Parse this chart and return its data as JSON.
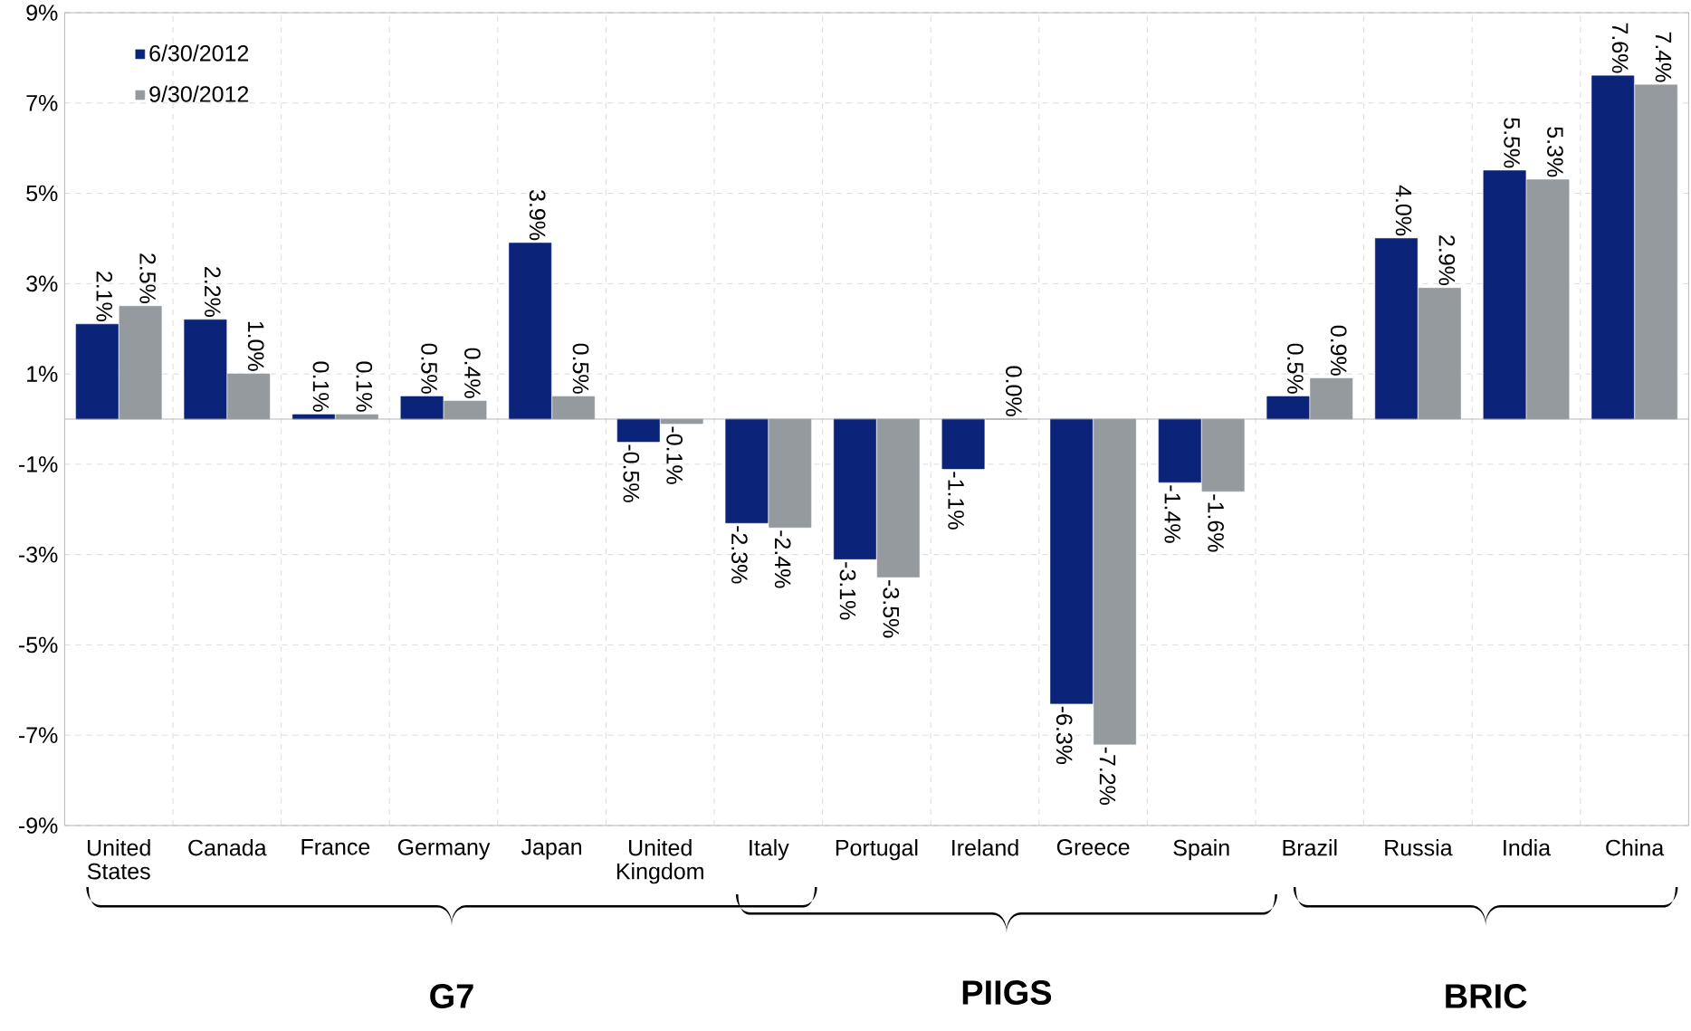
{
  "chart_data": {
    "type": "bar",
    "categories": [
      "United States",
      "Canada",
      "France",
      "Germany",
      "Japan",
      "United Kingdom",
      "Italy",
      "Portugal",
      "Ireland",
      "Greece",
      "Spain",
      "Brazil",
      "Russia",
      "India",
      "China"
    ],
    "series": [
      {
        "name": "6/30/2012",
        "color": "#0b2479",
        "values": [
          2.1,
          2.2,
          0.1,
          0.5,
          3.9,
          -0.5,
          -2.3,
          -3.1,
          -1.1,
          -6.3,
          -1.4,
          0.5,
          4.0,
          5.5,
          7.6
        ],
        "value_labels": [
          "2.1%",
          "2.2%",
          "0.1%",
          "0.5%",
          "3.9%",
          "-0.5%",
          "-2.3%",
          "-3.1%",
          "-1.1%",
          "-6.3%",
          "-1.4%",
          "0.5%",
          "4.0%",
          "5.5%",
          "7.6%"
        ]
      },
      {
        "name": "9/30/2012",
        "color": "#949a9d",
        "values": [
          2.5,
          1.0,
          0.1,
          0.4,
          0.5,
          -0.1,
          -2.4,
          -3.5,
          0.0,
          -7.2,
          -1.6,
          0.9,
          2.9,
          5.3,
          7.4
        ],
        "value_labels": [
          "2.5%",
          "1.0%",
          "0.1%",
          "0.4%",
          "0.5%",
          "-0.1%",
          "-2.4%",
          "-3.5%",
          "0.0%",
          "-7.2%",
          "-1.6%",
          "0.9%",
          "2.9%",
          "5.3%",
          "7.4%"
        ]
      }
    ],
    "ylim": [
      -9,
      9
    ],
    "yticks": [
      {
        "value": -9,
        "label": "-9%"
      },
      {
        "value": -7,
        "label": "-7%"
      },
      {
        "value": -5,
        "label": "-5%"
      },
      {
        "value": -3,
        "label": "-3%"
      },
      {
        "value": -1,
        "label": "-1%"
      },
      {
        "value": 1,
        "label": "1%"
      },
      {
        "value": 3,
        "label": "3%"
      },
      {
        "value": 5,
        "label": "5%"
      },
      {
        "value": 7,
        "label": "7%"
      },
      {
        "value": 9,
        "label": "9%"
      }
    ],
    "grid": true,
    "legend": "top left",
    "annotations": [
      "G7",
      "PIIGS",
      "BRIC"
    ]
  }
}
